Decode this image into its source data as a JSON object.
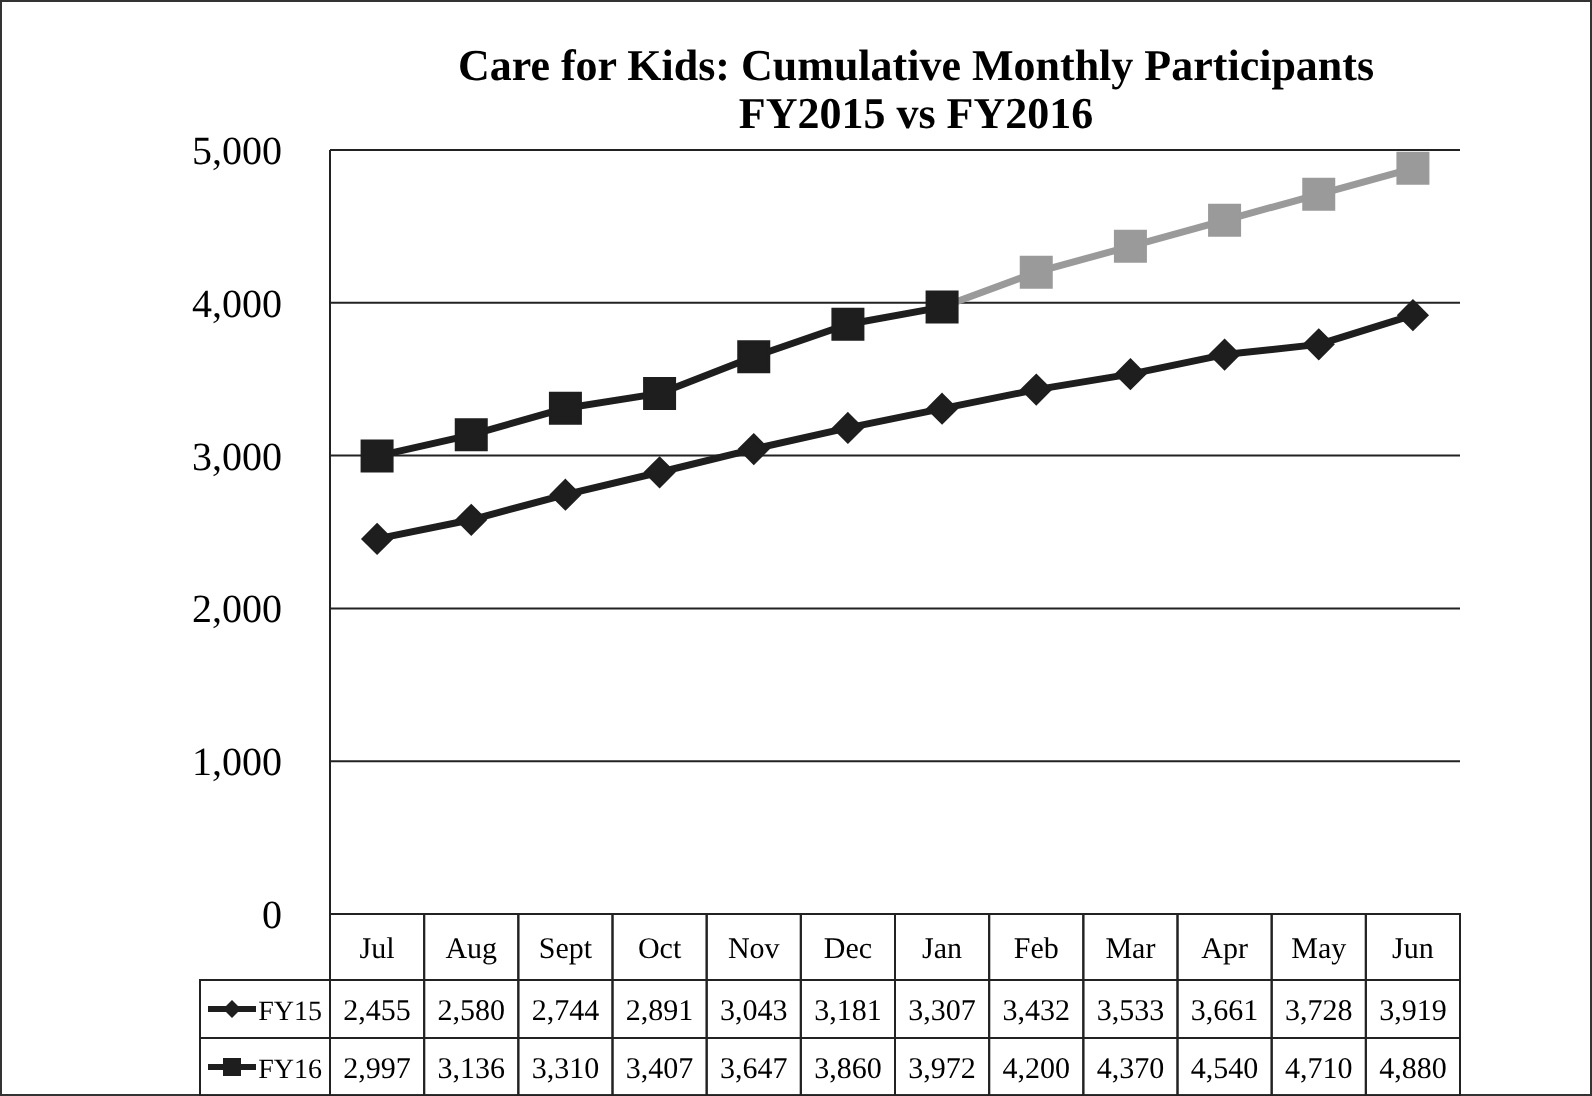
{
  "chart_data": {
    "type": "line",
    "title": "Care for Kids: Cumulative Monthly Participants\nFY2015 vs FY2016",
    "categories": [
      "Jul",
      "Aug",
      "Sept",
      "Oct",
      "Nov",
      "Dec",
      "Jan",
      "Feb",
      "Mar",
      "Apr",
      "May",
      "Jun"
    ],
    "series": [
      {
        "name": "FY15",
        "color": "#1e1e1e",
        "marker": "diamond",
        "values": [
          2455,
          2580,
          2744,
          2891,
          3043,
          3181,
          3307,
          3432,
          3533,
          3661,
          3728,
          3919
        ],
        "value_labels": [
          "2,455",
          "2,580",
          "2,744",
          "2,891",
          "3,043",
          "3,181",
          "3,307",
          "3,432",
          "3,533",
          "3,661",
          "3,728",
          "3,919"
        ]
      },
      {
        "name": "FY16",
        "color": "#1e1e1e",
        "marker": "square",
        "colors": [
          "#1e1e1e",
          "#1e1e1e",
          "#1e1e1e",
          "#1e1e1e",
          "#1e1e1e",
          "#1e1e1e",
          "#1e1e1e",
          "#9a9a9a",
          "#9a9a9a",
          "#9a9a9a",
          "#9a9a9a",
          "#9a9a9a"
        ],
        "values": [
          2997,
          3136,
          3310,
          3407,
          3647,
          3860,
          3972,
          4200,
          4370,
          4540,
          4710,
          4880
        ],
        "value_labels": [
          "2,997",
          "3,136",
          "3,310",
          "3,407",
          "3,647",
          "3,860",
          "3,972",
          "4,200",
          "4,370",
          "4,540",
          "4,710",
          "4,880"
        ]
      }
    ],
    "ylim": [
      0,
      5000
    ],
    "yticks": [
      0,
      {
        "value": 1000,
        "label": "1,000"
      },
      {
        "value": 2000,
        "label": "2,000"
      },
      {
        "value": 3000,
        "label": "3,000"
      },
      {
        "value": 4000,
        "label": "4,000"
      },
      {
        "value": 5000,
        "label": "5,000"
      }
    ],
    "grid": "y",
    "legend": "bottom"
  }
}
